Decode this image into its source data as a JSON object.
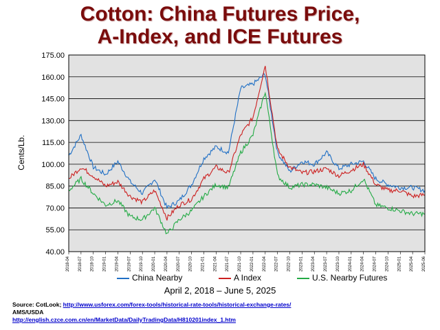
{
  "title_line1": "Cotton:  China Futures Price,",
  "title_line2": "A-Index, and ICE Futures",
  "date_range": "April 2, 2018 – June 5, 2025",
  "source": {
    "line1_prefix": "Source:  CotLook; ",
    "line1_link": "http://www.usforex.com/forex-tools/historical-rate-tools/historical-exchange-rates/",
    "line2": "AMS/USDA",
    "line3_link": "http://english.czce.com.cn/en/MarketData/DailyTradingData/H810201index_1.htm"
  },
  "colors": {
    "china": "#1f6fc5",
    "aindex": "#cc1f1f",
    "ice": "#22aa44",
    "plot_bg": "#e2e2e2",
    "title": "#7a0c0c"
  },
  "chart_data": {
    "type": "line",
    "title": "Cotton:  China Futures Price, A-Index, and ICE Futures",
    "xlabel": "",
    "ylabel": "Cents/Lb.",
    "ylim": [
      40,
      175
    ],
    "yticks": [
      "40.00",
      "55.00",
      "70.00",
      "85.00",
      "100.00",
      "115.00",
      "130.00",
      "145.00",
      "160.00",
      "175.00"
    ],
    "grid": true,
    "legend_placement": "bottom",
    "x": [
      "2018-04",
      "2018-07",
      "2018-10",
      "2019-01",
      "2019-04",
      "2019-07",
      "2019-10",
      "2020-01",
      "2020-04",
      "2020-07",
      "2020-10",
      "2021-01",
      "2021-04",
      "2021-07",
      "2021-10",
      "2022-01",
      "2022-04",
      "2022-07",
      "2022-10",
      "2023-01",
      "2023-04",
      "2023-07",
      "2023-10",
      "2024-01",
      "2024-04",
      "2024-07",
      "2024-10",
      "2025-01",
      "2025-04",
      "2025-06"
    ],
    "series": [
      {
        "name": "China Nearby",
        "color": "#1f6fc5",
        "values": [
          106,
          120,
          98,
          93,
          102,
          88,
          80,
          90,
          70,
          75,
          86,
          104,
          112,
          108,
          152,
          155,
          162,
          108,
          95,
          102,
          100,
          108,
          97,
          100,
          102,
          90,
          86,
          84,
          84,
          82
        ]
      },
      {
        "name": "A Index",
        "color": "#cc1f1f",
        "values": [
          90,
          98,
          92,
          85,
          88,
          78,
          74,
          82,
          63,
          72,
          76,
          90,
          98,
          94,
          120,
          132,
          168,
          110,
          98,
          94,
          95,
          97,
          92,
          96,
          100,
          86,
          82,
          82,
          78,
          79
        ]
      },
      {
        "name": "U.S. Nearby Futures",
        "color": "#22aa44",
        "values": [
          82,
          90,
          80,
          72,
          75,
          64,
          62,
          70,
          52,
          62,
          68,
          78,
          86,
          84,
          108,
          120,
          150,
          92,
          84,
          86,
          86,
          84,
          80,
          82,
          90,
          72,
          70,
          68,
          66,
          66
        ]
      }
    ]
  }
}
